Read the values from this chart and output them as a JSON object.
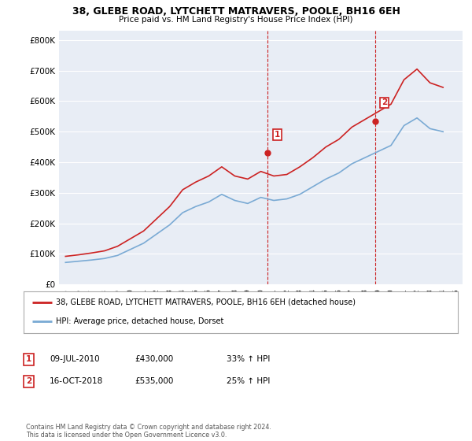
{
  "title1": "38, GLEBE ROAD, LYTCHETT MATRAVERS, POOLE, BH16 6EH",
  "title2": "Price paid vs. HM Land Registry's House Price Index (HPI)",
  "plot_bg": "#e8edf5",
  "red_label": "38, GLEBE ROAD, LYTCHETT MATRAVERS, POOLE, BH16 6EH (detached house)",
  "blue_label": "HPI: Average price, detached house, Dorset",
  "annotation1_date": "09-JUL-2010",
  "annotation1_price": "£430,000",
  "annotation1_hpi": "33% ↑ HPI",
  "annotation2_date": "16-OCT-2018",
  "annotation2_price": "£535,000",
  "annotation2_hpi": "25% ↑ HPI",
  "footer": "Contains HM Land Registry data © Crown copyright and database right 2024.\nThis data is licensed under the Open Government Licence v3.0.",
  "hpi_years": [
    1995,
    1996,
    1997,
    1998,
    1999,
    2000,
    2001,
    2002,
    2003,
    2004,
    2005,
    2006,
    2007,
    2008,
    2009,
    2010,
    2011,
    2012,
    2013,
    2014,
    2015,
    2016,
    2017,
    2018,
    2019,
    2020,
    2021,
    2022,
    2023,
    2024
  ],
  "hpi_values": [
    72000,
    76000,
    80000,
    85000,
    95000,
    115000,
    135000,
    165000,
    195000,
    235000,
    255000,
    270000,
    295000,
    275000,
    265000,
    285000,
    275000,
    280000,
    295000,
    320000,
    345000,
    365000,
    395000,
    415000,
    435000,
    455000,
    520000,
    545000,
    510000,
    500000
  ],
  "red_years": [
    1995,
    1996,
    1997,
    1998,
    1999,
    2000,
    2001,
    2002,
    2003,
    2004,
    2005,
    2006,
    2007,
    2008,
    2009,
    2010,
    2011,
    2012,
    2013,
    2014,
    2015,
    2016,
    2017,
    2018,
    2019,
    2020,
    2021,
    2022,
    2023,
    2024
  ],
  "red_values": [
    92000,
    97000,
    103000,
    110000,
    125000,
    150000,
    175000,
    215000,
    255000,
    310000,
    335000,
    355000,
    385000,
    355000,
    345000,
    370000,
    355000,
    360000,
    385000,
    415000,
    450000,
    475000,
    515000,
    540000,
    565000,
    590000,
    670000,
    705000,
    660000,
    645000
  ],
  "sale1_year": 2010.52,
  "sale1_value": 430000,
  "sale2_year": 2018.79,
  "sale2_value": 535000,
  "vline1_year": 2010.52,
  "vline2_year": 2018.79,
  "ylim": [
    0,
    830000
  ],
  "xlim_start": 1994.5,
  "xlim_end": 2025.5,
  "yticks": [
    0,
    100000,
    200000,
    300000,
    400000,
    500000,
    600000,
    700000,
    800000
  ],
  "xticks": [
    1995,
    1996,
    1997,
    1998,
    1999,
    2000,
    2001,
    2002,
    2003,
    2004,
    2005,
    2006,
    2007,
    2008,
    2009,
    2010,
    2011,
    2012,
    2013,
    2014,
    2015,
    2016,
    2017,
    2018,
    2019,
    2020,
    2021,
    2022,
    2023,
    2024,
    2025
  ]
}
